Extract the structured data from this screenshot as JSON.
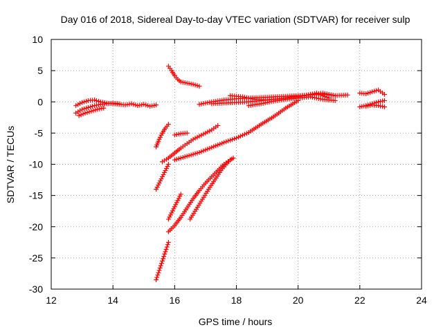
{
  "chart_data": {
    "type": "scatter",
    "title": "Day 016 of 2018, Sidereal Day-to-day VTEC variation (SDTVAR) for receiver sulp",
    "xlabel": "GPS time / hours",
    "ylabel": "SDTVAR / TECUs",
    "xlim": [
      12,
      24
    ],
    "ylim": [
      -30,
      10
    ],
    "xticks": [
      "12",
      "14",
      "16",
      "18",
      "20",
      "22",
      "24"
    ],
    "yticks": [
      "10",
      "5",
      "0",
      "-5",
      "-10",
      "-15",
      "-20",
      "-25",
      "-30"
    ],
    "grid": true,
    "marker": "+",
    "color": "#ff0000",
    "series": [
      {
        "x": [
          12.8,
          13.0,
          13.2,
          13.4,
          13.6,
          13.8,
          14.0,
          14.2,
          14.4,
          14.6,
          14.8,
          15.0,
          15.2,
          15.4
        ],
        "y": [
          -0.6,
          -0.1,
          0.2,
          0.3,
          0.0,
          -0.2,
          -0.3,
          -0.4,
          -0.5,
          -0.3,
          -0.6,
          -0.4,
          -0.7,
          -0.5
        ]
      },
      {
        "x": [
          12.8,
          13.0,
          13.2,
          13.4,
          13.6,
          13.8,
          14.0,
          14.2
        ],
        "y": [
          -1.8,
          -1.2,
          -0.9,
          -0.6,
          -0.4,
          -0.3,
          -0.2,
          -0.3
        ]
      },
      {
        "x": [
          12.9,
          13.1,
          13.3,
          13.5,
          13.7
        ],
        "y": [
          -2.2,
          -1.8,
          -1.5,
          -1.2,
          -1.0
        ]
      },
      {
        "x": [
          15.8,
          15.9,
          16.0,
          16.1,
          16.2,
          16.4,
          16.6,
          16.8
        ],
        "y": [
          5.7,
          5.0,
          4.2,
          3.6,
          3.2,
          3.0,
          2.8,
          2.5
        ]
      },
      {
        "x": [
          15.4,
          15.5,
          15.6,
          15.7,
          15.8
        ],
        "y": [
          -7.2,
          -6.0,
          -5.0,
          -4.2,
          -3.6
        ]
      },
      {
        "x": [
          16.0,
          16.2,
          16.4
        ],
        "y": [
          -5.3,
          -5.1,
          -5.0
        ]
      },
      {
        "x": [
          15.6,
          15.8,
          16.0,
          16.2,
          16.4,
          16.6,
          16.8,
          17.0,
          17.2,
          17.4
        ],
        "y": [
          -9.6,
          -9.0,
          -8.2,
          -7.4,
          -6.7,
          -6.0,
          -5.5,
          -5.0,
          -4.5,
          -3.8
        ]
      },
      {
        "x": [
          16.0,
          16.4,
          16.8,
          17.2,
          17.6,
          18.0,
          18.4,
          18.8,
          19.2,
          19.6,
          20.0
        ],
        "y": [
          -9.3,
          -8.7,
          -8.1,
          -7.3,
          -6.5,
          -5.8,
          -4.9,
          -3.6,
          -2.4,
          -1.0,
          0.2
        ]
      },
      {
        "x": [
          15.4,
          15.5,
          15.6,
          15.7,
          15.8
        ],
        "y": [
          -14.0,
          -13.0,
          -12.0,
          -11.0,
          -10.0
        ]
      },
      {
        "x": [
          15.8,
          15.9,
          16.0,
          16.1,
          16.2
        ],
        "y": [
          -18.8,
          -17.8,
          -16.8,
          -15.8,
          -14.8
        ]
      },
      {
        "x": [
          15.8,
          16.0,
          16.2,
          16.4,
          16.6,
          16.8,
          17.0,
          17.2,
          17.4,
          17.6,
          17.8,
          17.9
        ],
        "y": [
          -20.8,
          -19.8,
          -18.5,
          -17.0,
          -15.5,
          -14.2,
          -13.0,
          -12.0,
          -11.0,
          -10.0,
          -9.3,
          -9.0
        ]
      },
      {
        "x": [
          16.5,
          16.7,
          16.9,
          17.1,
          17.3,
          17.5,
          17.7,
          17.8
        ],
        "y": [
          -18.8,
          -17.2,
          -15.6,
          -14.0,
          -12.5,
          -11.0,
          -9.8,
          -9.3
        ]
      },
      {
        "x": [
          15.4,
          15.5,
          15.6,
          15.7,
          15.8
        ],
        "y": [
          -28.5,
          -27.0,
          -25.5,
          -24.0,
          -22.5
        ]
      },
      {
        "x": [
          16.8,
          17.2,
          17.6,
          18.0,
          18.4,
          18.8,
          19.2,
          19.6,
          20.0,
          20.4,
          20.8,
          21.2,
          21.6
        ],
        "y": [
          -0.4,
          0.0,
          0.3,
          0.5,
          0.6,
          0.7,
          0.8,
          0.9,
          1.0,
          1.1,
          1.2,
          1.0,
          1.1
        ]
      },
      {
        "x": [
          17.2,
          17.6,
          18.0,
          18.4,
          18.8,
          19.2,
          19.6,
          20.0,
          20.4,
          20.8,
          21.2
        ],
        "y": [
          -0.3,
          -0.2,
          -0.1,
          0.0,
          0.2,
          0.4,
          0.6,
          0.8,
          1.2,
          1.4,
          1.0
        ]
      },
      {
        "x": [
          17.8,
          18.2,
          18.6,
          19.0,
          19.4,
          19.8,
          20.2,
          20.6,
          21.0
        ],
        "y": [
          1.0,
          0.8,
          0.4,
          0.3,
          0.5,
          0.8,
          1.0,
          1.4,
          0.6
        ]
      },
      {
        "x": [
          18.4,
          18.8,
          19.2,
          19.6,
          20.0,
          20.4,
          20.8,
          21.2
        ],
        "y": [
          -0.6,
          -0.3,
          0.1,
          0.4,
          0.6,
          0.8,
          0.4,
          0.2
        ]
      },
      {
        "x": [
          22.0,
          22.2,
          22.4,
          22.6,
          22.8
        ],
        "y": [
          1.4,
          1.3,
          1.6,
          1.9,
          1.2
        ]
      },
      {
        "x": [
          22.0,
          22.2,
          22.4,
          22.6,
          22.8
        ],
        "y": [
          -0.8,
          -0.6,
          -0.3,
          0.0,
          0.2
        ]
      },
      {
        "x": [
          22.2,
          22.4,
          22.6,
          22.8
        ],
        "y": [
          -0.7,
          -0.5,
          -0.6,
          -0.8
        ]
      }
    ]
  }
}
